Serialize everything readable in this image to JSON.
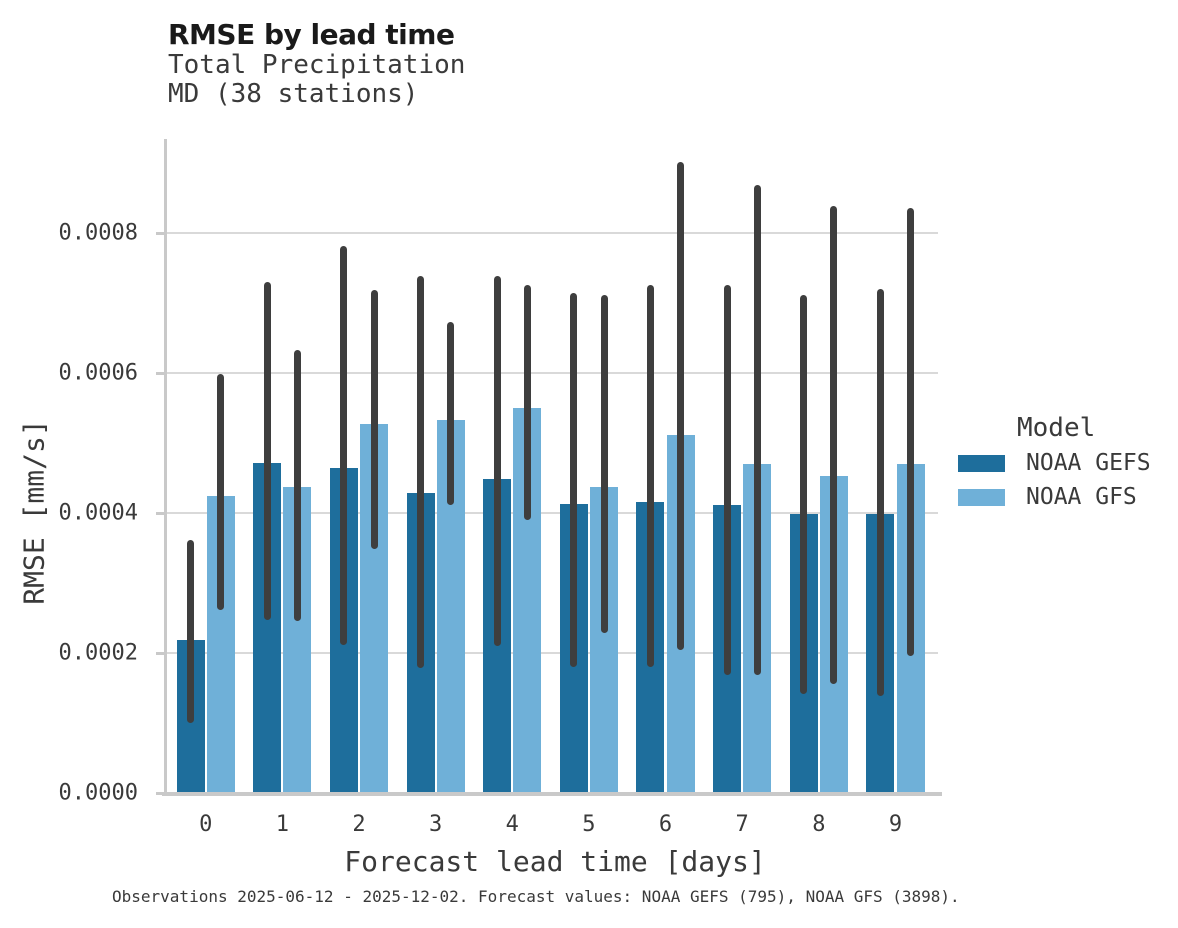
{
  "header": {
    "title": "RMSE by lead time",
    "subtitle1": "Total Precipitation",
    "subtitle2": "MD (38 stations)"
  },
  "legend": {
    "title": "Model"
  },
  "footer": {
    "caption": "Observations 2025-06-12 - 2025-12-02. Forecast values: NOAA GEFS (795), NOAA GFS (3898)."
  },
  "chart_data": {
    "type": "bar",
    "title": "RMSE by lead time",
    "subtitle": [
      "Total Precipitation",
      "MD (38 stations)"
    ],
    "xlabel": "Forecast lead time [days]",
    "ylabel": "RMSE [mm/s]",
    "categories": [
      "0",
      "1",
      "2",
      "3",
      "4",
      "5",
      "6",
      "7",
      "8",
      "9"
    ],
    "yticks": [
      0.0,
      0.0002,
      0.0004,
      0.0006,
      0.0008
    ],
    "ytick_labels": [
      "0.0000",
      "0.0002",
      "0.0004",
      "0.0006",
      "0.0008"
    ],
    "ylim": [
      0,
      0.00093
    ],
    "grid": true,
    "legend_position": "right",
    "error_bar_color": "#3e3e3e",
    "gridline_color": "#d9d9d9",
    "axis_color": "#c9c9c9",
    "series": [
      {
        "name": "NOAA GEFS",
        "color": "#1e6e9c",
        "values": [
          0.000219,
          0.000471,
          0.000465,
          0.000428,
          0.000449,
          0.000413,
          0.000416,
          0.000412,
          0.000398,
          0.000399
        ],
        "err_low": [
          0.0001,
          0.000247,
          0.000211,
          0.000178,
          0.00021,
          0.00018,
          0.00018,
          0.000169,
          0.000142,
          0.000139
        ],
        "err_high": [
          0.000362,
          0.00073,
          0.000781,
          0.000738,
          0.000739,
          0.000715,
          0.000726,
          0.000726,
          0.000712,
          0.00072
        ]
      },
      {
        "name": "NOAA GFS",
        "color": "#6fb0d8",
        "values": [
          0.000424,
          0.000437,
          0.000527,
          0.000533,
          0.00055,
          0.000437,
          0.000511,
          0.00047,
          0.000453,
          0.00047
        ],
        "err_low": [
          0.000262,
          0.000246,
          0.000349,
          0.000411,
          0.00039,
          0.000229,
          0.000204,
          0.000169,
          0.000156,
          0.000196
        ],
        "err_high": [
          0.000599,
          0.000633,
          0.000719,
          0.000673,
          0.000726,
          0.000712,
          0.000902,
          0.000868,
          0.000839,
          0.000836
        ]
      }
    ]
  }
}
